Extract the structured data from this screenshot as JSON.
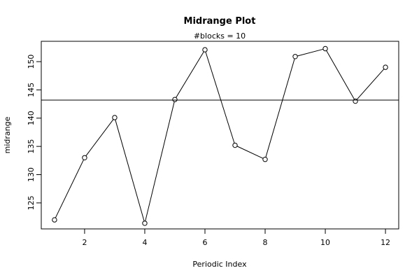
{
  "chart_data": {
    "type": "line",
    "title": "Midrange Plot",
    "subtitle": "#blocks =  10",
    "xlabel": "Periodic Index",
    "ylabel": "midrange",
    "x": [
      1,
      2,
      3,
      4,
      5,
      6,
      7,
      8,
      9,
      10,
      11,
      12
    ],
    "y": [
      122.0,
      133.0,
      140.1,
      121.4,
      143.3,
      152.1,
      135.2,
      132.7,
      150.9,
      152.3,
      143.0,
      149.0
    ],
    "reference_line": 143.2,
    "xlim": [
      0.56,
      12.44
    ],
    "ylim": [
      120.4,
      153.6
    ],
    "x_ticks": [
      2,
      4,
      6,
      8,
      10,
      12
    ],
    "y_ticks": [
      125,
      130,
      135,
      140,
      145,
      150
    ],
    "grid": false,
    "legend": "none"
  }
}
